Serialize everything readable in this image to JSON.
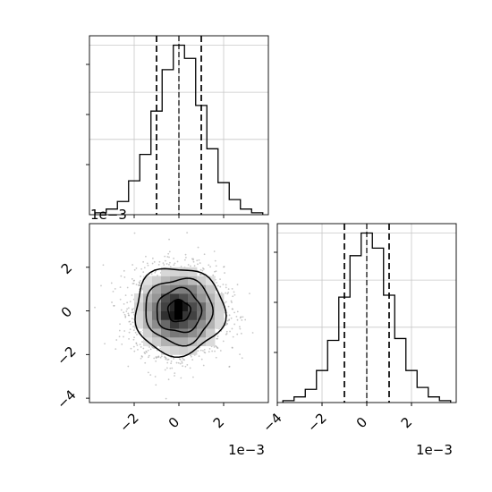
{
  "chart_data": [
    {
      "type": "bar",
      "panel": "histogram-x",
      "unit_scale": 0.001,
      "bin_centers": [
        -3.5,
        -3.0,
        -2.5,
        -2.0,
        -1.5,
        -1.0,
        -0.5,
        0.0,
        0.5,
        1.0,
        1.5,
        2.0,
        2.5,
        3.0,
        3.5
      ],
      "values": [
        1,
        3,
        7,
        18,
        32,
        55,
        77,
        90,
        83,
        58,
        35,
        17,
        8,
        3,
        1
      ],
      "quantile_lines": [
        -1.0,
        0.0,
        1.0
      ],
      "xlim": [
        -4,
        4
      ],
      "ylim": [
        0,
        95
      ],
      "grid": true
    },
    {
      "type": "heatmap",
      "panel": "2d-density",
      "unit_scale": 0.001,
      "xlim": [
        -4,
        4
      ],
      "ylim": [
        -4.2,
        4.0
      ],
      "x_ticks": [
        -2,
        0,
        2
      ],
      "y_ticks": [
        -4,
        -2,
        0,
        2
      ],
      "x_offset_label": "1e−3",
      "y_offset_label": "1e−3",
      "sigma": 1.0,
      "contour_levels_sigma": [
        0.5,
        1.0,
        1.5,
        2.0
      ],
      "scatter_points": 2600
    },
    {
      "type": "bar",
      "panel": "histogram-y",
      "unit_scale": 0.001,
      "bin_centers": [
        -3.5,
        -3.0,
        -2.5,
        -2.0,
        -1.5,
        -1.0,
        -0.5,
        0.0,
        0.5,
        1.0,
        1.5,
        2.0,
        2.5,
        3.0,
        3.5
      ],
      "values": [
        1,
        3,
        7,
        17,
        33,
        56,
        78,
        90,
        82,
        57,
        34,
        17,
        8,
        3,
        1
      ],
      "quantile_lines": [
        -1.0,
        0.0,
        1.0
      ],
      "xlim": [
        -4,
        4
      ],
      "ylim": [
        0,
        95
      ],
      "x_ticks": [
        -4,
        -2,
        0,
        2
      ],
      "x_offset_label": "1e−3",
      "grid": true
    }
  ]
}
